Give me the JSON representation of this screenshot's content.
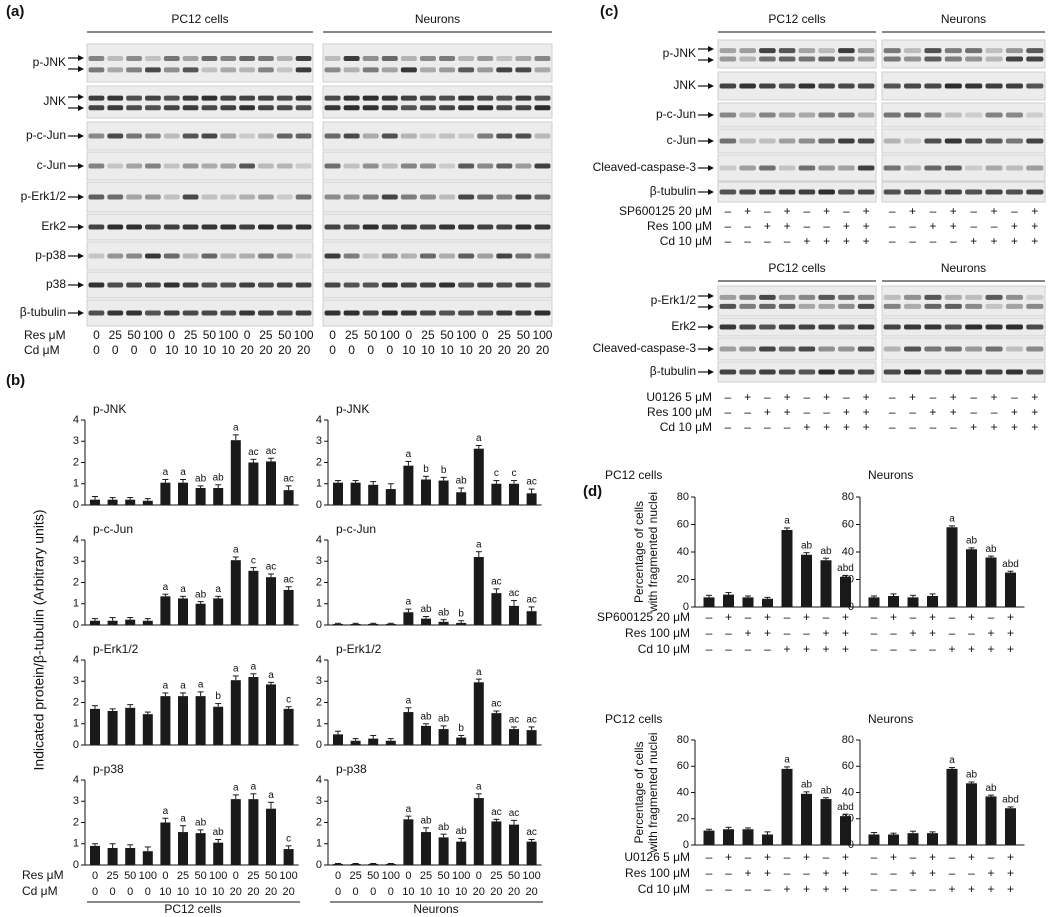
{
  "panel_a": {
    "label": "(a)",
    "groups": [
      "PC12 cells",
      "Neurons"
    ],
    "rows": [
      "p-JNK",
      "JNK",
      "p-c-Jun",
      "c-Jun",
      "p-Erk1/2",
      "Erk2",
      "p-p38",
      "p38",
      "β-tubulin"
    ],
    "conditions": [
      {
        "name": "Res μM",
        "values": [
          0,
          25,
          50,
          100,
          0,
          25,
          50,
          100,
          0,
          25,
          50,
          100,
          0,
          25,
          50,
          100,
          0,
          25,
          50,
          100,
          0,
          25,
          50,
          100
        ]
      },
      {
        "name": "Cd μM",
        "values": [
          0,
          0,
          0,
          0,
          10,
          10,
          10,
          10,
          20,
          20,
          20,
          20,
          0,
          0,
          0,
          0,
          10,
          10,
          10,
          10,
          20,
          20,
          20,
          20
        ]
      }
    ]
  },
  "panel_b": {
    "label": "(b)",
    "y_label": "Indicated protein/β-tubulin (Arbitrary units)",
    "groups": [
      "PC12 cells",
      "Neurons"
    ],
    "conditions": [
      {
        "name": "Res μM",
        "values": [
          0,
          25,
          50,
          100,
          0,
          25,
          50,
          100,
          0,
          25,
          50,
          100
        ]
      },
      {
        "name": "Cd μM",
        "values": [
          0,
          0,
          0,
          0,
          10,
          10,
          10,
          10,
          20,
          20,
          20,
          20
        ]
      }
    ]
  },
  "panel_c": {
    "label": "(c)",
    "blocks": [
      {
        "groups": [
          "PC12 cells",
          "Neurons"
        ],
        "rows": [
          "p-JNK",
          "JNK",
          "p-c-Jun",
          "c-Jun",
          "Cleaved-caspase-3",
          "β-tubulin"
        ],
        "conditions": [
          {
            "name": "SP600125 20 μM",
            "values": [
              "–",
              "+",
              "–",
              "+",
              "–",
              "+",
              "–",
              "+",
              "–",
              "+",
              "–",
              "+",
              "–",
              "+",
              "–",
              "+"
            ]
          },
          {
            "name": "Res 100 μM",
            "values": [
              "–",
              "–",
              "+",
              "+",
              "–",
              "–",
              "+",
              "+",
              "–",
              "–",
              "+",
              "+",
              "–",
              "–",
              "+",
              "+"
            ]
          },
          {
            "name": "Cd 10 μM",
            "values": [
              "–",
              "–",
              "–",
              "–",
              "+",
              "+",
              "+",
              "+",
              "–",
              "–",
              "–",
              "–",
              "+",
              "+",
              "+",
              "+"
            ]
          }
        ]
      },
      {
        "groups": [
          "PC12 cells",
          "Neurons"
        ],
        "rows": [
          "p-Erk1/2",
          "Erk2",
          "Cleaved-caspase-3",
          "β-tubulin"
        ],
        "conditions": [
          {
            "name": "U0126 5 μM",
            "values": [
              "–",
              "+",
              "–",
              "+",
              "–",
              "+",
              "–",
              "+",
              "–",
              "+",
              "–",
              "+",
              "–",
              "+",
              "–",
              "+"
            ]
          },
          {
            "name": "Res 100 μM",
            "values": [
              "–",
              "–",
              "+",
              "+",
              "–",
              "–",
              "+",
              "+",
              "–",
              "–",
              "+",
              "+",
              "–",
              "–",
              "+",
              "+"
            ]
          },
          {
            "name": "Cd 10 μM",
            "values": [
              "–",
              "–",
              "–",
              "–",
              "+",
              "+",
              "+",
              "+",
              "–",
              "–",
              "–",
              "–",
              "+",
              "+",
              "+",
              "+"
            ]
          }
        ]
      }
    ]
  },
  "panel_d": {
    "label": "(d)",
    "y_label": [
      "Percentage of cells",
      "with fragmented nuclei"
    ],
    "blocks": [
      {
        "conditions": [
          {
            "name": "SP600125 20 μM",
            "values": [
              "–",
              "+",
              "–",
              "+",
              "–",
              "+",
              "–",
              "+"
            ]
          },
          {
            "name": "Res 100 μM",
            "values": [
              "–",
              "–",
              "+",
              "+",
              "–",
              "–",
              "+",
              "+"
            ]
          },
          {
            "name": "Cd 10 μM",
            "values": [
              "–",
              "–",
              "–",
              "–",
              "+",
              "+",
              "+",
              "+"
            ]
          }
        ]
      },
      {
        "conditions": [
          {
            "name": "U0126 5 μM",
            "values": [
              "–",
              "+",
              "–",
              "+",
              "–",
              "+",
              "–",
              "+"
            ]
          },
          {
            "name": "Res 100 μM",
            "values": [
              "–",
              "–",
              "+",
              "+",
              "–",
              "–",
              "+",
              "+"
            ]
          },
          {
            "name": "Cd 10 μM",
            "values": [
              "–",
              "–",
              "–",
              "–",
              "+",
              "+",
              "+",
              "+"
            ]
          }
        ]
      }
    ]
  },
  "chart_data": [
    {
      "type": "bar",
      "title": "p-JNK",
      "color": "#1a1a1a",
      "ylim": [
        0,
        4
      ],
      "yticks": [
        0,
        1,
        2,
        3,
        4
      ],
      "values": [
        0.25,
        0.25,
        0.25,
        0.2,
        1.05,
        1.05,
        0.8,
        0.8,
        3.05,
        2.0,
        2.05,
        0.7
      ],
      "errors": [
        0.15,
        0.1,
        0.1,
        0.1,
        0.15,
        0.15,
        0.1,
        0.15,
        0.25,
        0.15,
        0.15,
        0.2
      ],
      "annotations": [
        null,
        null,
        null,
        null,
        "a",
        "a",
        "ab",
        "ab",
        "a",
        "ac",
        "ac",
        "ac"
      ]
    },
    {
      "type": "bar",
      "title": "p-JNK",
      "color": "#1a1a1a",
      "ylim": [
        0,
        4
      ],
      "yticks": [
        0,
        1,
        2,
        3,
        4
      ],
      "values": [
        1.05,
        1.05,
        0.95,
        0.75,
        1.85,
        1.2,
        1.15,
        0.6,
        2.65,
        1.0,
        1.0,
        0.55
      ],
      "errors": [
        0.1,
        0.1,
        0.15,
        0.25,
        0.2,
        0.15,
        0.15,
        0.2,
        0.15,
        0.15,
        0.15,
        0.2
      ],
      "annotations": [
        null,
        null,
        null,
        null,
        "a",
        "b",
        "b",
        "ab",
        "a",
        "c",
        "c",
        "ac"
      ]
    },
    {
      "type": "bar",
      "title": "p-c-Jun",
      "color": "#1a1a1a",
      "ylim": [
        0,
        4
      ],
      "yticks": [
        0,
        1,
        2,
        3,
        4
      ],
      "values": [
        0.2,
        0.2,
        0.25,
        0.2,
        1.35,
        1.25,
        1.0,
        1.25,
        3.05,
        2.55,
        2.25,
        1.65
      ],
      "errors": [
        0.1,
        0.15,
        0.1,
        0.1,
        0.1,
        0.1,
        0.1,
        0.1,
        0.15,
        0.15,
        0.15,
        0.15
      ],
      "annotations": [
        null,
        null,
        null,
        null,
        "a",
        "a",
        "ab",
        "a",
        "a",
        "c",
        "ac",
        "ac"
      ]
    },
    {
      "type": "bar",
      "title": "p-c-Jun",
      "color": "#1a1a1a",
      "ylim": [
        0,
        4
      ],
      "yticks": [
        0,
        1,
        2,
        3,
        4
      ],
      "values": [
        0.05,
        0.05,
        0.05,
        0.05,
        0.6,
        0.3,
        0.15,
        0.1,
        3.2,
        1.5,
        0.9,
        0.65
      ],
      "errors": [
        0.03,
        0.03,
        0.03,
        0.03,
        0.15,
        0.1,
        0.1,
        0.1,
        0.25,
        0.2,
        0.25,
        0.2
      ],
      "annotations": [
        null,
        null,
        null,
        null,
        "a",
        "ab",
        "ab",
        "b",
        "a",
        "ac",
        "ac",
        "ac"
      ]
    },
    {
      "type": "bar",
      "title": "p-Erk1/2",
      "color": "#1a1a1a",
      "ylim": [
        0,
        4
      ],
      "yticks": [
        0,
        1,
        2,
        3,
        4
      ],
      "values": [
        1.7,
        1.6,
        1.75,
        1.45,
        2.3,
        2.3,
        2.3,
        1.8,
        3.05,
        3.2,
        2.85,
        1.7
      ],
      "errors": [
        0.15,
        0.1,
        0.15,
        0.1,
        0.15,
        0.15,
        0.2,
        0.15,
        0.2,
        0.15,
        0.1,
        0.1
      ],
      "annotations": [
        null,
        null,
        null,
        null,
        "a",
        "a",
        "a",
        "b",
        "a",
        "a",
        "a",
        "c"
      ]
    },
    {
      "type": "bar",
      "title": "p-Erk1/2",
      "color": "#1a1a1a",
      "ylim": [
        0,
        4
      ],
      "yticks": [
        0,
        1,
        2,
        3,
        4
      ],
      "values": [
        0.5,
        0.2,
        0.3,
        0.2,
        1.55,
        0.9,
        0.75,
        0.35,
        2.95,
        1.5,
        0.75,
        0.7
      ],
      "errors": [
        0.15,
        0.1,
        0.15,
        0.1,
        0.2,
        0.1,
        0.15,
        0.1,
        0.15,
        0.1,
        0.1,
        0.15
      ],
      "annotations": [
        null,
        null,
        null,
        null,
        "a",
        "ab",
        "ab",
        "b",
        "a",
        "ac",
        "ac",
        "ac"
      ]
    },
    {
      "type": "bar",
      "title": "p-p38",
      "color": "#1a1a1a",
      "ylim": [
        0,
        4
      ],
      "yticks": [
        0,
        1,
        2,
        3,
        4
      ],
      "values": [
        0.9,
        0.8,
        0.8,
        0.65,
        2.0,
        1.55,
        1.5,
        1.05,
        3.1,
        3.1,
        2.65,
        0.75
      ],
      "errors": [
        0.1,
        0.2,
        0.15,
        0.2,
        0.2,
        0.3,
        0.15,
        0.15,
        0.2,
        0.25,
        0.3,
        0.15
      ],
      "annotations": [
        null,
        null,
        null,
        null,
        "a",
        "a",
        "ab",
        "ab",
        "a",
        "a",
        "a",
        "c"
      ]
    },
    {
      "type": "bar",
      "title": "p-p38",
      "color": "#1a1a1a",
      "ylim": [
        0,
        4
      ],
      "yticks": [
        0,
        1,
        2,
        3,
        4
      ],
      "values": [
        0.05,
        0.05,
        0.05,
        0.05,
        2.15,
        1.55,
        1.3,
        1.1,
        3.15,
        2.05,
        1.9,
        1.1
      ],
      "errors": [
        0.02,
        0.02,
        0.02,
        0.02,
        0.15,
        0.2,
        0.15,
        0.15,
        0.2,
        0.1,
        0.2,
        0.1
      ],
      "annotations": [
        null,
        null,
        null,
        null,
        "a",
        "ab",
        "ab",
        "ab",
        "a",
        "ac",
        "ac",
        "ac"
      ]
    },
    {
      "type": "bar",
      "title": "PC12 cells",
      "color": "#1a1a1a",
      "ylim": [
        0,
        80
      ],
      "yticks": [
        0,
        20,
        40,
        60,
        80
      ],
      "values": [
        7,
        9,
        7,
        6,
        56,
        38,
        34,
        22
      ],
      "errors": [
        1.5,
        1.5,
        1,
        1,
        1.5,
        1.5,
        1.5,
        1
      ],
      "annotations": [
        null,
        null,
        null,
        null,
        "a",
        "ab",
        "ab",
        "abd"
      ]
    },
    {
      "type": "bar",
      "title": "Neurons",
      "color": "#1a1a1a",
      "ylim": [
        0,
        80
      ],
      "yticks": [
        0,
        20,
        40,
        60,
        80
      ],
      "values": [
        7,
        8,
        7,
        8,
        58,
        42,
        36,
        25
      ],
      "errors": [
        1,
        1.5,
        1.5,
        1.5,
        1,
        1,
        1,
        1
      ],
      "annotations": [
        null,
        null,
        null,
        null,
        "a",
        "ab",
        "ab",
        "abd"
      ]
    },
    {
      "type": "bar",
      "title": "PC12 cells",
      "color": "#1a1a1a",
      "ylim": [
        0,
        80
      ],
      "yticks": [
        0,
        20,
        40,
        60,
        80
      ],
      "values": [
        11,
        12,
        12,
        8,
        58,
        39,
        35,
        22
      ],
      "errors": [
        1,
        1.5,
        1,
        2,
        1.5,
        1.5,
        1,
        1.5
      ],
      "annotations": [
        null,
        null,
        null,
        null,
        "a",
        "ab",
        "ab",
        "abd"
      ]
    },
    {
      "type": "bar",
      "title": "Neurons",
      "color": "#1a1a1a",
      "ylim": [
        0,
        80
      ],
      "yticks": [
        0,
        20,
        40,
        60,
        80
      ],
      "values": [
        8,
        8,
        9,
        9,
        58,
        47,
        37,
        28
      ],
      "errors": [
        1.5,
        1,
        1.5,
        1,
        1,
        1,
        1,
        1
      ],
      "annotations": [
        null,
        null,
        null,
        null,
        "a",
        "ab",
        "ab",
        "abd"
      ]
    }
  ]
}
